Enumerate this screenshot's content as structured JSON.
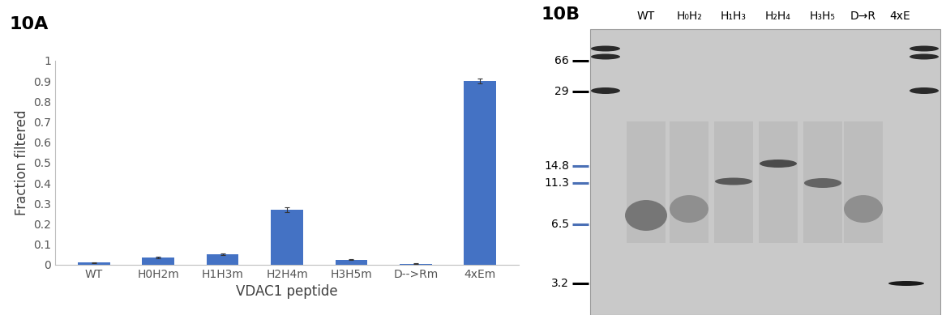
{
  "chart_data": {
    "type": "bar",
    "title": "10A",
    "x_label": "VDAC1 peptide",
    "y_label": "Fraction filtered",
    "categories": [
      "WT",
      "H0H2m",
      "H1H3m",
      "H2H4m",
      "H3H5m",
      "D-->Rm",
      "4xEm"
    ],
    "values": [
      0.01,
      0.035,
      0.052,
      0.27,
      0.025,
      0.005,
      0.9
    ],
    "errors": [
      0.003,
      0.003,
      0.003,
      0.012,
      0.002,
      0.002,
      0.012
    ],
    "color": "#4472c4",
    "ylim": [
      0,
      1
    ],
    "yticks": [
      0,
      0.1,
      0.2,
      0.3,
      0.4,
      0.5,
      0.6,
      0.7,
      0.8,
      0.9,
      1
    ],
    "grid": false
  },
  "gel": {
    "title": "10B",
    "lanes": [
      "WT",
      "H₀H₂",
      "H₁H₃",
      "H₂H₄",
      "H₃H₅",
      "D→R",
      "4xE"
    ],
    "markers": [
      66,
      29,
      14.8,
      11.3,
      6.5,
      3.2
    ]
  }
}
